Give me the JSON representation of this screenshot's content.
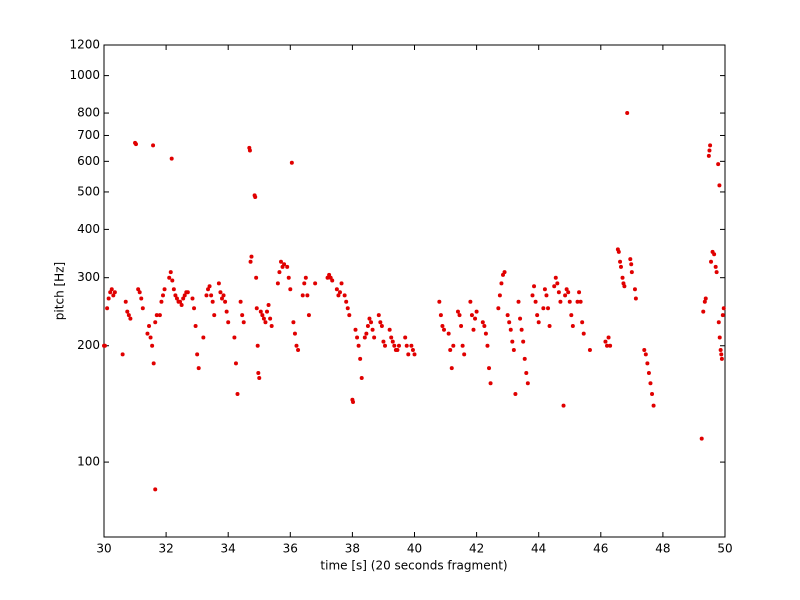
{
  "chart_data": {
    "type": "scatter",
    "xlabel": "time [s] (20 seconds fragment)",
    "ylabel": "pitch [Hz]",
    "color": "#e00000",
    "log_y": true,
    "xlim": [
      30,
      50
    ],
    "xticks": [
      30,
      32,
      34,
      36,
      38,
      40,
      42,
      44,
      46,
      48,
      50
    ],
    "ylim": [
      64,
      1200
    ],
    "yticks": [
      100,
      200,
      300,
      400,
      500,
      600,
      700,
      800,
      1000,
      1200
    ],
    "x": [
      30.0,
      30.03,
      30.1,
      30.15,
      30.2,
      30.25,
      30.3,
      30.35,
      30.6,
      30.7,
      30.75,
      30.8,
      30.85,
      31.0,
      31.03,
      31.1,
      31.15,
      31.2,
      31.25,
      31.4,
      31.45,
      31.5,
      31.55,
      31.6,
      31.65,
      31.7,
      31.58,
      31.65,
      31.8,
      31.85,
      31.9,
      31.95,
      32.1,
      32.15,
      32.2,
      32.25,
      32.18,
      32.3,
      32.35,
      32.4,
      32.45,
      32.5,
      32.55,
      32.6,
      32.65,
      32.7,
      32.85,
      32.9,
      32.95,
      33.0,
      33.05,
      33.2,
      33.3,
      33.35,
      33.4,
      33.45,
      33.5,
      33.55,
      33.7,
      33.75,
      33.8,
      33.85,
      33.9,
      33.95,
      34.0,
      34.2,
      34.25,
      34.3,
      34.4,
      34.45,
      34.5,
      34.68,
      34.7,
      34.72,
      34.75,
      34.85,
      34.87,
      34.9,
      34.92,
      34.95,
      34.97,
      35.0,
      35.05,
      35.1,
      35.15,
      35.2,
      35.25,
      35.3,
      35.35,
      35.4,
      35.6,
      35.65,
      35.7,
      35.75,
      35.8,
      35.9,
      35.95,
      36.0,
      36.05,
      36.1,
      36.15,
      36.2,
      36.25,
      36.4,
      36.45,
      36.5,
      36.55,
      36.6,
      36.8,
      37.2,
      37.25,
      37.3,
      37.35,
      37.5,
      37.55,
      37.6,
      37.65,
      37.75,
      37.8,
      37.85,
      37.9,
      38.0,
      38.02,
      38.1,
      38.15,
      38.2,
      38.25,
      38.3,
      38.4,
      38.45,
      38.5,
      38.55,
      38.6,
      38.65,
      38.7,
      38.85,
      38.9,
      38.95,
      39.0,
      39.05,
      39.2,
      39.25,
      39.3,
      39.35,
      39.4,
      39.45,
      39.5,
      39.7,
      39.75,
      39.8,
      39.9,
      39.95,
      40.0,
      40.8,
      40.85,
      40.9,
      40.95,
      41.1,
      41.15,
      41.2,
      41.25,
      41.4,
      41.45,
      41.5,
      41.55,
      41.6,
      41.8,
      41.85,
      41.9,
      41.95,
      42.0,
      42.2,
      42.25,
      42.3,
      42.35,
      42.4,
      42.45,
      42.7,
      42.75,
      42.8,
      42.85,
      42.9,
      43.0,
      43.05,
      43.1,
      43.15,
      43.2,
      43.25,
      43.35,
      43.4,
      43.45,
      43.5,
      43.55,
      43.6,
      43.65,
      43.8,
      43.85,
      43.9,
      43.95,
      44.0,
      44.15,
      44.2,
      44.25,
      44.3,
      44.35,
      44.5,
      44.55,
      44.6,
      44.65,
      44.7,
      44.8,
      44.85,
      44.9,
      44.95,
      45.0,
      45.05,
      45.1,
      45.25,
      45.3,
      45.35,
      45.4,
      45.45,
      45.65,
      46.15,
      46.2,
      46.25,
      46.3,
      46.55,
      46.58,
      46.62,
      46.65,
      46.7,
      46.73,
      46.76,
      46.85,
      46.95,
      46.98,
      47.0,
      47.1,
      47.13,
      47.4,
      47.45,
      47.5,
      47.55,
      47.6,
      47.65,
      47.7,
      49.25,
      49.3,
      49.35,
      49.38,
      49.5,
      49.52,
      49.48,
      49.55,
      49.6,
      49.65,
      49.7,
      49.73,
      49.78,
      49.82,
      49.8,
      49.83,
      49.86,
      49.88,
      49.9,
      49.93,
      49.96
    ],
    "values": [
      200,
      200,
      250,
      265,
      275,
      280,
      270,
      275,
      190,
      260,
      245,
      240,
      235,
      670,
      665,
      280,
      275,
      265,
      250,
      215,
      225,
      210,
      200,
      180,
      230,
      240,
      660,
      85,
      240,
      260,
      270,
      280,
      300,
      310,
      295,
      280,
      610,
      270,
      265,
      260,
      260,
      255,
      265,
      270,
      275,
      275,
      265,
      250,
      225,
      190,
      175,
      210,
      270,
      280,
      285,
      270,
      260,
      240,
      290,
      275,
      265,
      270,
      260,
      245,
      230,
      210,
      180,
      150,
      260,
      240,
      230,
      650,
      640,
      330,
      340,
      490,
      485,
      300,
      250,
      200,
      170,
      165,
      245,
      240,
      235,
      230,
      245,
      255,
      235,
      225,
      290,
      310,
      330,
      320,
      325,
      320,
      300,
      280,
      595,
      230,
      215,
      200,
      195,
      270,
      290,
      300,
      270,
      240,
      290,
      300,
      305,
      300,
      295,
      280,
      270,
      275,
      290,
      270,
      260,
      250,
      240,
      145,
      143,
      220,
      210,
      200,
      185,
      165,
      210,
      215,
      225,
      235,
      230,
      220,
      210,
      240,
      230,
      225,
      205,
      200,
      220,
      210,
      205,
      200,
      195,
      195,
      200,
      210,
      200,
      190,
      200,
      195,
      190,
      260,
      240,
      225,
      220,
      215,
      195,
      175,
      200,
      245,
      240,
      225,
      200,
      190,
      260,
      240,
      220,
      235,
      245,
      230,
      225,
      215,
      200,
      175,
      160,
      250,
      270,
      290,
      305,
      310,
      240,
      230,
      220,
      205,
      195,
      150,
      260,
      235,
      220,
      205,
      185,
      170,
      160,
      270,
      285,
      260,
      240,
      230,
      250,
      280,
      270,
      250,
      225,
      285,
      300,
      290,
      275,
      260,
      140,
      270,
      280,
      275,
      260,
      240,
      225,
      260,
      275,
      260,
      230,
      215,
      195,
      205,
      200,
      210,
      200,
      355,
      350,
      330,
      320,
      300,
      290,
      285,
      800,
      335,
      325,
      310,
      280,
      265,
      195,
      190,
      180,
      170,
      160,
      150,
      140,
      115,
      245,
      260,
      265,
      640,
      660,
      620,
      330,
      350,
      345,
      320,
      310,
      590,
      520,
      230,
      210,
      195,
      190,
      185,
      240,
      250
    ]
  }
}
